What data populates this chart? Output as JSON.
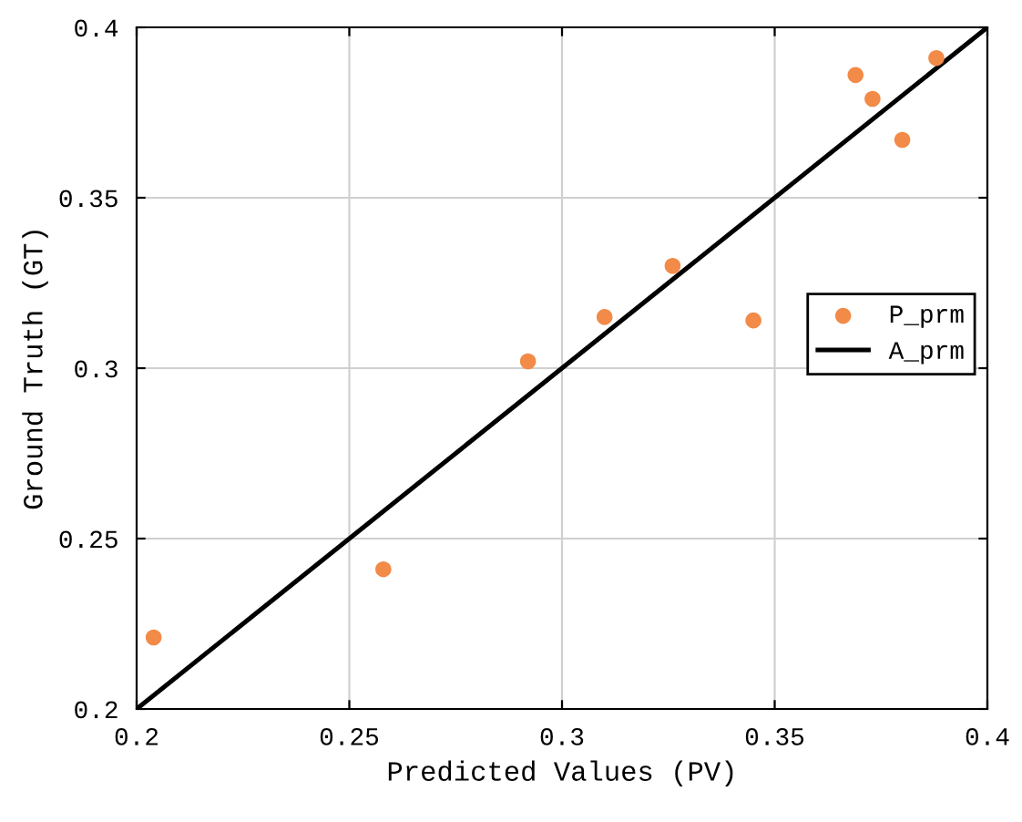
{
  "chart_data": {
    "type": "scatter",
    "xlabel": "Predicted Values (PV)",
    "ylabel": "Ground Truth (GT)",
    "series": [
      {
        "name": "P_prm",
        "color": "#f28a48",
        "marker": "circle",
        "x": [
          0.204,
          0.258,
          0.292,
          0.31,
          0.326,
          0.345,
          0.369,
          0.373,
          0.38,
          0.388
        ],
        "values": [
          0.221,
          0.241,
          0.302,
          0.315,
          0.33,
          0.314,
          0.386,
          0.379,
          0.367,
          0.391
        ]
      },
      {
        "name": "A_prm",
        "type": "line",
        "color": "#000000",
        "line_style": "solid",
        "x": [
          0.2,
          0.4
        ],
        "values": [
          0.2,
          0.4
        ]
      }
    ],
    "xlim": [
      0.2,
      0.4
    ],
    "ylim": [
      0.2,
      0.4
    ],
    "xticks": [
      0.2,
      0.25,
      0.3,
      0.35,
      0.4
    ],
    "yticks": [
      0.2,
      0.25,
      0.3,
      0.35,
      0.4
    ],
    "grid": true,
    "legend": "right"
  }
}
